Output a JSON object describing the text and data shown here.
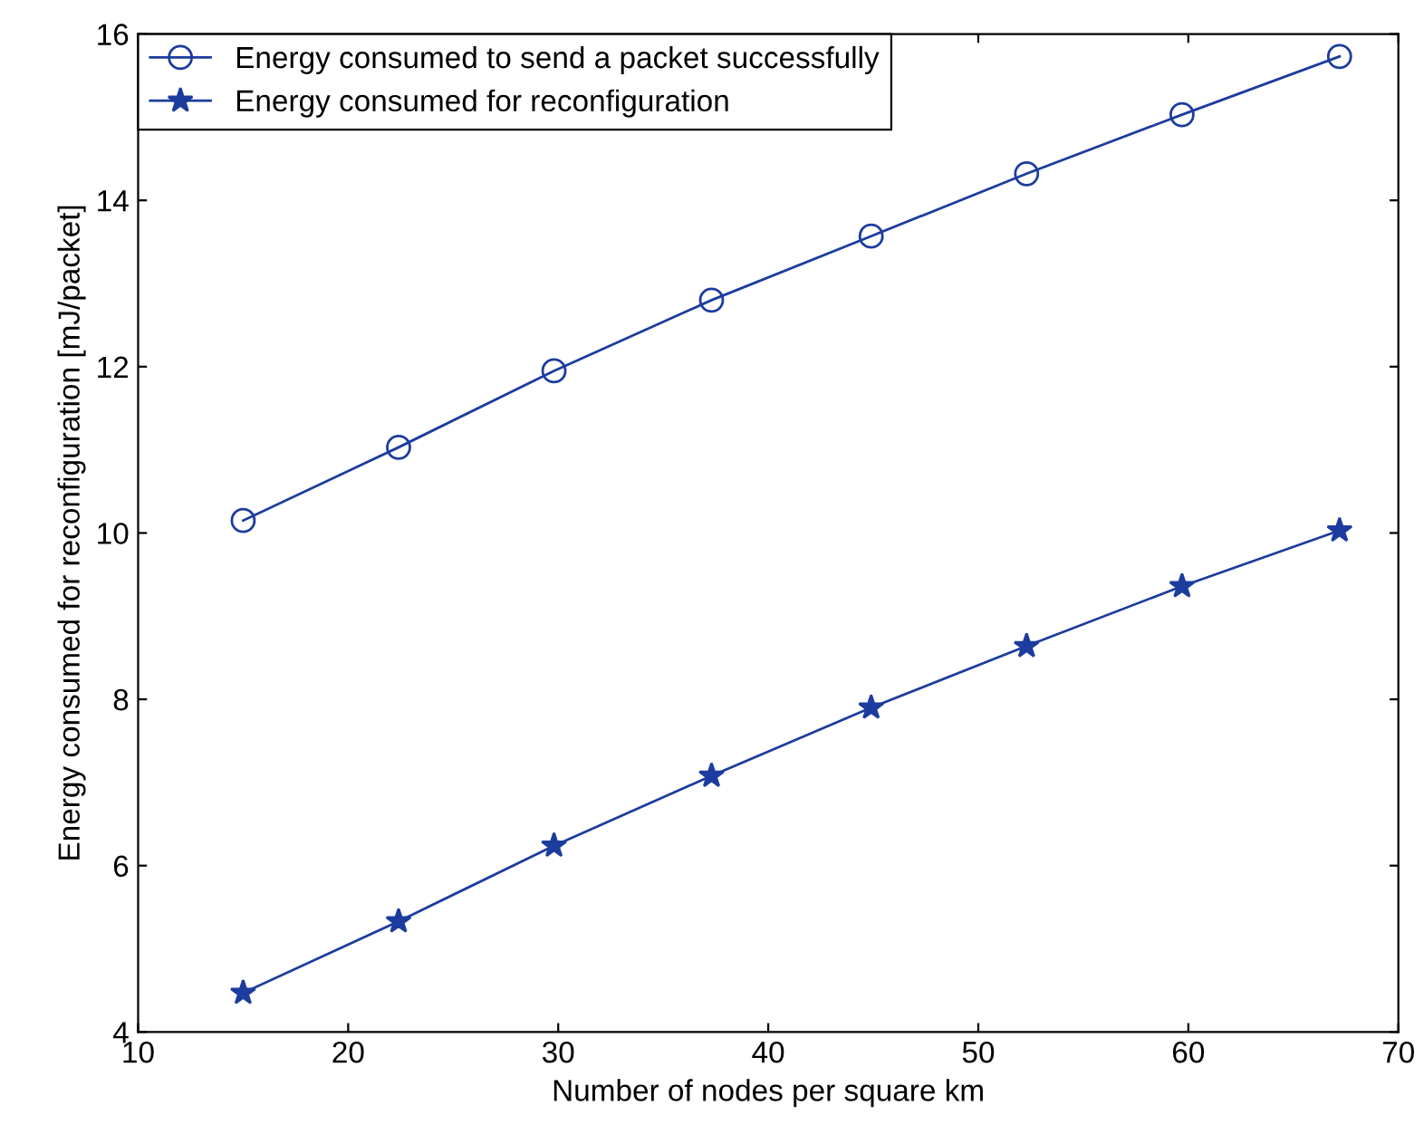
{
  "chart_data": {
    "type": "line",
    "xlabel": "Number of nodes per square km",
    "ylabel": "Energy consumed for reconfiguration [mJ/packet]",
    "x": [
      15,
      22.4,
      29.8,
      37.3,
      44.9,
      52.3,
      59.7,
      67.2
    ],
    "series": [
      {
        "name": "Energy consumed to send a packet successfully",
        "color": "#1c3c9e",
        "marker": "circle",
        "values": [
          10.15,
          11.03,
          11.95,
          12.8,
          13.57,
          14.32,
          15.03,
          15.73
        ]
      },
      {
        "name": "Energy consumed for reconfiguration",
        "color": "#1c3c9e",
        "marker": "star",
        "values": [
          4.47,
          5.33,
          6.24,
          7.08,
          7.9,
          8.64,
          9.36,
          10.03
        ]
      }
    ],
    "xlim": [
      10,
      70
    ],
    "xticks": [
      10,
      20,
      30,
      40,
      50,
      60,
      70
    ],
    "ylim": [
      4,
      16
    ],
    "yticks": [
      4,
      6,
      8,
      10,
      12,
      14,
      16
    ],
    "grid": false,
    "legend": "top left",
    "line_style": "solid"
  }
}
